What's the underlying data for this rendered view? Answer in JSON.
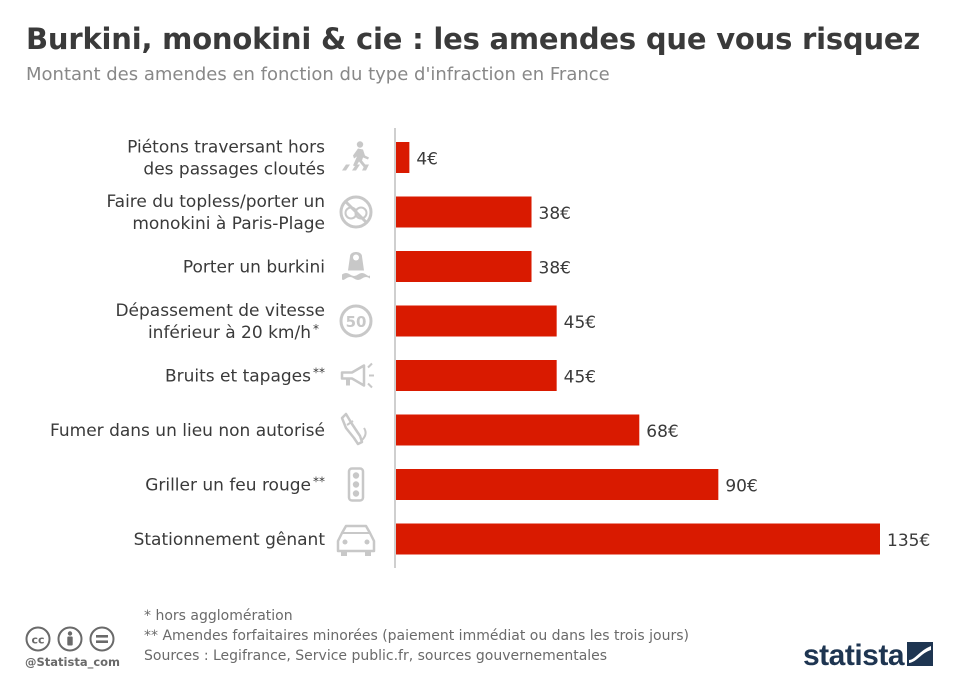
{
  "title": "Burkini, monokini & cie : les amendes que vous risquez",
  "subtitle": "Montant des amendes en fonction du type d'infraction en France",
  "chart_data": {
    "type": "bar",
    "orientation": "horizontal",
    "categories": [
      {
        "lines": [
          "Piétons traversant hors",
          "des passages cloutés"
        ],
        "mark": "",
        "icon": "pedestrian-crossing-icon"
      },
      {
        "lines": [
          "Faire du topless/porter un",
          "monokini à Paris-Plage"
        ],
        "mark": "",
        "icon": "no-topless-icon"
      },
      {
        "lines": [
          "Porter un burkini"
        ],
        "mark": "",
        "icon": "burkini-icon"
      },
      {
        "lines": [
          "Dépassement de vitesse",
          "inférieur à 20 km/h"
        ],
        "mark": "*",
        "icon": "speed-limit-50-icon"
      },
      {
        "lines": [
          "Bruits et tapages"
        ],
        "mark": "**",
        "icon": "megaphone-icon"
      },
      {
        "lines": [
          "Fumer dans un lieu non autorisé"
        ],
        "mark": "",
        "icon": "cigarette-icon"
      },
      {
        "lines": [
          "Griller un feu rouge"
        ],
        "mark": "**",
        "icon": "traffic-light-icon"
      },
      {
        "lines": [
          "Stationnement gênant"
        ],
        "mark": "",
        "icon": "car-icon"
      }
    ],
    "values": [
      4,
      38,
      38,
      45,
      45,
      68,
      90,
      135
    ],
    "value_labels": [
      "4€",
      "38€",
      "38€",
      "45€",
      "45€",
      "68€",
      "90€",
      "135€"
    ],
    "unit": "€",
    "xlim": [
      0,
      135
    ],
    "grid": false,
    "bar_color": "#d91a00"
  },
  "footnotes": [
    "*   hors agglomération",
    "** Amendes forfaitaires minorées (paiement immédiat ou dans les trois jours)",
    "Sources : Legifrance, Service public.fr, sources gouvernementales"
  ],
  "credit": "@Statista_com",
  "license_icons": [
    "cc-icon",
    "attribution-icon",
    "no-derivatives-icon"
  ],
  "logo_text": "statista"
}
